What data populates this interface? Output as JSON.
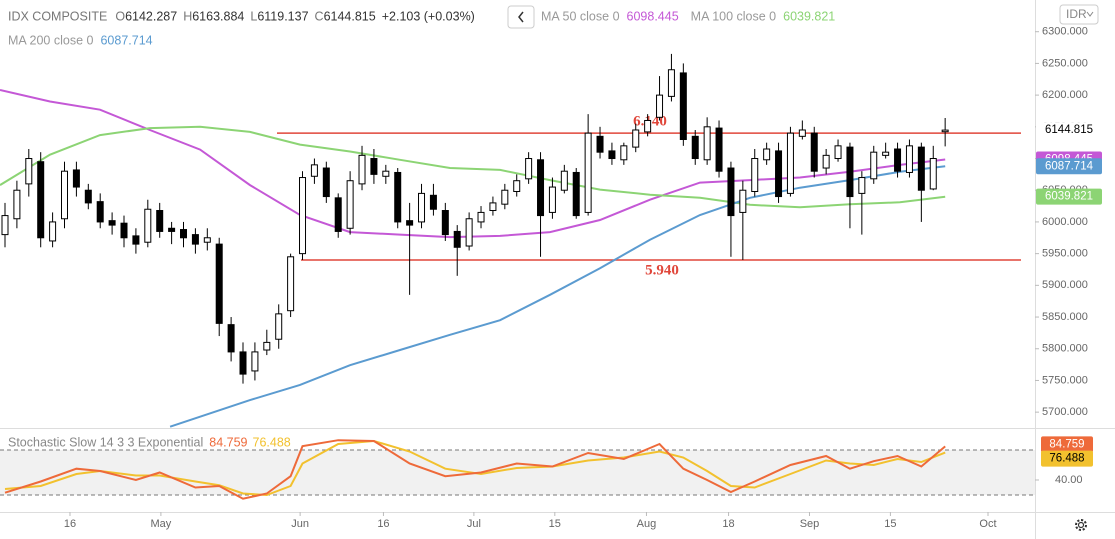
{
  "header": {
    "symbol": "IDX COMPOSITE",
    "ohlc_letters": [
      "O",
      "H",
      "L",
      "C"
    ],
    "change": "+2.103 (+0.03%)",
    "currency": "IDR"
  },
  "chart_data": [
    {
      "type": "candlestick",
      "open": [
        5980,
        6005,
        6060,
        6095,
        5970,
        6005,
        6082,
        6050,
        6032,
        6002,
        5998,
        5978,
        5968,
        6018,
        5990,
        5988,
        5980,
        5968,
        5965,
        5838,
        5795,
        5765,
        5798,
        5815,
        5860,
        5950,
        6072,
        6085,
        6038,
        5990,
        6060,
        6100,
        6072,
        6078,
        6002,
        6000,
        6042,
        6018,
        5985,
        5962,
        6000,
        6018,
        6028,
        6048,
        6068,
        6098,
        6015,
        6050,
        6078,
        6015,
        6135,
        6112,
        6098,
        6118,
        6142,
        6165,
        6198,
        6235,
        6135,
        6098,
        6148,
        6085,
        6015,
        6048,
        6098,
        6112,
        6045,
        6135,
        6140,
        6085,
        6100,
        6118,
        6045,
        6068,
        6105,
        6115,
        6078,
        6118,
        6052,
        6142.287
      ],
      "high": [
        6030,
        6065,
        6115,
        6110,
        6015,
        6095,
        6095,
        6060,
        6045,
        6015,
        6010,
        5990,
        6035,
        6030,
        6000,
        6000,
        5990,
        5990,
        5975,
        5850,
        5810,
        5810,
        5830,
        5870,
        5950,
        6080,
        6100,
        6095,
        6045,
        6080,
        6120,
        6115,
        6090,
        6085,
        6030,
        6060,
        6060,
        6030,
        5995,
        6015,
        6025,
        6040,
        6060,
        6075,
        6110,
        6110,
        6070,
        6090,
        6085,
        6170,
        6150,
        6125,
        6125,
        6155,
        6170,
        6230,
        6265,
        6250,
        6145,
        6165,
        6160,
        6095,
        6065,
        6115,
        6125,
        6125,
        6150,
        6160,
        6150,
        6115,
        6130,
        6125,
        6080,
        6120,
        6125,
        6125,
        6130,
        6125,
        6120,
        6163.884
      ],
      "low": [
        5960,
        5990,
        6040,
        5960,
        5960,
        5990,
        6040,
        6020,
        5990,
        5980,
        5960,
        5950,
        5960,
        5975,
        5965,
        5960,
        5950,
        5955,
        5820,
        5780,
        5745,
        5750,
        5790,
        5800,
        5850,
        5940,
        6060,
        6030,
        5975,
        5980,
        6050,
        6060,
        6060,
        5990,
        5885,
        5990,
        6010,
        5970,
        5915,
        5955,
        5990,
        6010,
        6020,
        6040,
        6060,
        5945,
        6005,
        6045,
        6005,
        6010,
        6100,
        6090,
        6090,
        6110,
        6135,
        6160,
        6190,
        6120,
        6090,
        6090,
        6070,
        5945,
        5940,
        6040,
        6090,
        6030,
        6040,
        6130,
        6070,
        6075,
        6095,
        5990,
        5980,
        6060,
        6100,
        6070,
        6070,
        6000,
        6050,
        6119.137
      ],
      "close": [
        6010,
        6050,
        6100,
        5975,
        6000,
        6080,
        6055,
        6030,
        6000,
        5995,
        5975,
        5965,
        6020,
        5985,
        5985,
        5975,
        5965,
        5975,
        5840,
        5795,
        5760,
        5795,
        5810,
        5855,
        5945,
        6070,
        6090,
        6040,
        5985,
        6065,
        6105,
        6075,
        6080,
        6000,
        5995,
        6045,
        6020,
        5980,
        5960,
        6005,
        6015,
        6030,
        6050,
        6065,
        6100,
        6010,
        6055,
        6080,
        6010,
        6140,
        6110,
        6100,
        6120,
        6145,
        6160,
        6200,
        6240,
        6130,
        6100,
        6150,
        6080,
        6010,
        6050,
        6100,
        6115,
        6040,
        6140,
        6145,
        6080,
        6105,
        6120,
        6040,
        6070,
        6110,
        6110,
        6080,
        6120,
        6050,
        6100,
        6144.815
      ],
      "up_color": "#ffffff",
      "down_color": "#000000",
      "xlim": [
        -0.42,
        86.55
      ],
      "ylim": [
        5675,
        6350
      ],
      "yticks": [
        {
          "value": 6300,
          "label": "6300.000"
        },
        {
          "value": 6250,
          "label": "6250.000"
        },
        {
          "value": 6200,
          "label": "6200.000"
        },
        {
          "value": 6150,
          "label": "6150.000"
        },
        {
          "value": 6100,
          "label": "6100.000"
        },
        {
          "value": 6050,
          "label": "6050.000"
        },
        {
          "value": 6000,
          "label": "6000.000"
        },
        {
          "value": 5950,
          "label": "5950.000"
        },
        {
          "value": 5900,
          "label": "5900.000"
        },
        {
          "value": 5850,
          "label": "5850.000"
        },
        {
          "value": 5800,
          "label": "5800.000"
        },
        {
          "value": 5750,
          "label": "5750.000"
        },
        {
          "value": 5700,
          "label": "5700.000"
        }
      ],
      "xticks": [
        {
          "value": 5.46,
          "label": "16"
        },
        {
          "value": 13.1,
          "label": "May"
        },
        {
          "value": 24.8,
          "label": "Jun"
        },
        {
          "value": 31.8,
          "label": "16"
        },
        {
          "value": 39.4,
          "label": "Jul"
        },
        {
          "value": 46.2,
          "label": "15"
        },
        {
          "value": 53.9,
          "label": "Aug"
        },
        {
          "value": 60.8,
          "label": "18"
        },
        {
          "value": 67.6,
          "label": "Sep"
        },
        {
          "value": 74.4,
          "label": "15"
        },
        {
          "value": 82.6,
          "label": "Oct"
        }
      ],
      "series": [
        {
          "name": "MA 50 close 0",
          "color": "#c458d6",
          "x": [
            -0.42,
            3.78,
            7.98,
            12.18,
            16.39,
            20.59,
            24.79,
            28.99,
            33.19,
            37.39,
            41.6,
            45.8,
            50,
            54.2,
            58.4,
            62.6,
            66.8,
            71,
            75.2,
            79
          ],
          "values": [
            6208,
            6190,
            6177,
            6145,
            6114,
            6058,
            6011,
            5984,
            5980,
            5976,
            5978,
            5984,
            6003,
            6035,
            6062,
            6066,
            6070,
            6079,
            6090,
            6098.445
          ]
        },
        {
          "name": "MA 100 close 0",
          "color": "#8cd474",
          "x": [
            -0.42,
            3.78,
            7.98,
            12.18,
            16.39,
            20.59,
            24.79,
            28.99,
            33.19,
            37.39,
            41.6,
            45.8,
            50,
            54.2,
            58.4,
            62.6,
            66.8,
            71,
            75.2,
            79
          ],
          "values": [
            6058,
            6106,
            6137,
            6148,
            6150,
            6142,
            6122,
            6111,
            6098,
            6085,
            6082,
            6066,
            6051,
            6043,
            6038,
            6027,
            6023,
            6028,
            6031,
            6039.821
          ]
        },
        {
          "name": "MA 200 close 0",
          "color": "#5b9bd0",
          "x": [
            13.87,
            20.59,
            24.79,
            28.99,
            33.19,
            37.39,
            41.6,
            45.8,
            50,
            54.2,
            58.4,
            62.6,
            66.8,
            71,
            75.2,
            79
          ],
          "values": [
            5677,
            5719,
            5743,
            5774,
            5798,
            5822,
            5845,
            5885,
            5927,
            5972,
            6011,
            6038,
            6054,
            6066,
            6079,
            6087.714
          ]
        }
      ],
      "hlines": [
        {
          "value": 6140,
          "label": "6.140"
        },
        {
          "value": 5940,
          "label": "5.940"
        }
      ],
      "hline_color": "#e0463a"
    },
    {
      "type": "stochastic",
      "title": "Stochastic Slow 14 3 3 Exponential",
      "x": [
        0,
        3,
        6,
        8,
        11,
        13,
        16,
        18,
        20,
        22,
        24,
        25,
        28,
        31,
        34,
        37,
        40,
        43,
        46,
        49,
        52,
        55,
        57,
        59,
        61,
        63,
        66,
        69,
        71,
        73,
        75,
        77,
        79
      ],
      "series": [
        {
          "color": "#ee6a3a",
          "values": [
            23,
            38,
            55,
            52,
            40,
            50,
            30,
            32,
            15,
            22,
            45,
            85,
            93,
            92,
            62,
            45,
            50,
            62,
            58,
            76,
            68,
            88,
            55,
            40,
            24,
            38,
            60,
            72,
            55,
            65,
            72,
            58,
            84.759
          ]
        },
        {
          "color": "#f2c12e",
          "values": [
            28,
            32,
            48,
            52,
            46,
            46,
            38,
            33,
            22,
            20,
            32,
            62,
            88,
            92,
            78,
            55,
            48,
            56,
            58,
            66,
            70,
            78,
            70,
            52,
            32,
            30,
            48,
            66,
            62,
            60,
            68,
            64,
            76.488
          ]
        }
      ],
      "ylim": [
        -2.7,
        109.3
      ],
      "levels": [
        20,
        80
      ],
      "yticks": [
        {
          "value": 40,
          "label": "40.00"
        }
      ]
    }
  ]
}
